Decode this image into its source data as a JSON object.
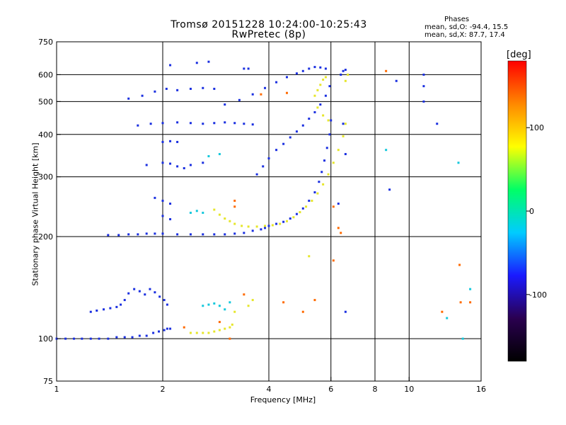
{
  "header": {
    "title": "Tromsø 20151228 10:24:00-10:25:43",
    "subtitle": "RwPretec (8p)"
  },
  "stats": {
    "heading": "Phases",
    "o_line": "mean, sd,O: -94.4, 15.5",
    "x_line": "mean, sd,X:  87.7, 17.4"
  },
  "colorbar": {
    "unit_label": "[deg]",
    "ticks": [
      {
        "value": 100,
        "label": "100"
      },
      {
        "value": 0,
        "label": "0"
      },
      {
        "value": -100,
        "label": "-100"
      }
    ],
    "range": [
      -180,
      180
    ],
    "stops": [
      "#000000",
      "#2a0050",
      "#1a1aff",
      "#00ccff",
      "#00ff66",
      "#ffff00",
      "#ff8800",
      "#ff0000"
    ]
  },
  "chart_data": {
    "type": "scatter",
    "xlabel": "Frequency [MHz]",
    "ylabel": "Stationary phase Virtual Height [km]",
    "xscale": "log",
    "yscale": "log",
    "xlim": [
      1,
      16
    ],
    "ylim": [
      75,
      750
    ],
    "xticks": [
      {
        "value": 1,
        "label": "1"
      },
      {
        "value": 2,
        "label": "2"
      },
      {
        "value": 4,
        "label": "4"
      },
      {
        "value": 6,
        "label": "6"
      },
      {
        "value": 8,
        "label": "8"
      },
      {
        "value": 10,
        "label": "10"
      },
      {
        "value": 16,
        "label": "16"
      }
    ],
    "yticks": [
      {
        "value": 75,
        "label": "75"
      },
      {
        "value": 100,
        "label": "100"
      },
      {
        "value": 200,
        "label": "200"
      },
      {
        "value": 300,
        "label": "300"
      },
      {
        "value": 400,
        "label": "400"
      },
      {
        "value": 500,
        "label": "500"
      },
      {
        "value": 600,
        "label": "600"
      },
      {
        "value": 750,
        "label": "750"
      }
    ],
    "xgrid": [
      2,
      4,
      6,
      8,
      10
    ],
    "ygrid": [
      100,
      200,
      300,
      400,
      500,
      600
    ],
    "grid": true,
    "series": [
      {
        "mode": "O",
        "phase_deg": -94.4,
        "color": "#1a2fe0",
        "points": [
          [
            1.0,
            100
          ],
          [
            1.06,
            100
          ],
          [
            1.12,
            100
          ],
          [
            1.18,
            100
          ],
          [
            1.25,
            100
          ],
          [
            1.32,
            100
          ],
          [
            1.4,
            100
          ],
          [
            1.48,
            101
          ],
          [
            1.56,
            101
          ],
          [
            1.64,
            101
          ],
          [
            1.72,
            102
          ],
          [
            1.8,
            102
          ],
          [
            1.88,
            104
          ],
          [
            1.95,
            105
          ],
          [
            2.02,
            106
          ],
          [
            2.06,
            107
          ],
          [
            2.1,
            107
          ],
          [
            1.25,
            120
          ],
          [
            1.3,
            121
          ],
          [
            1.36,
            122
          ],
          [
            1.42,
            123
          ],
          [
            1.48,
            124
          ],
          [
            1.52,
            126
          ],
          [
            1.56,
            130
          ],
          [
            1.6,
            136
          ],
          [
            1.66,
            140
          ],
          [
            1.72,
            138
          ],
          [
            1.78,
            135
          ],
          [
            1.84,
            140
          ],
          [
            1.9,
            137
          ],
          [
            1.96,
            133
          ],
          [
            2.02,
            130
          ],
          [
            2.06,
            126
          ],
          [
            1.4,
            202
          ],
          [
            1.5,
            202
          ],
          [
            1.6,
            203
          ],
          [
            1.7,
            203
          ],
          [
            1.8,
            204
          ],
          [
            1.9,
            204
          ],
          [
            2.0,
            204
          ],
          [
            2.2,
            203
          ],
          [
            2.4,
            203
          ],
          [
            2.6,
            203
          ],
          [
            2.8,
            203
          ],
          [
            3.0,
            203
          ],
          [
            3.2,
            204
          ],
          [
            3.4,
            205
          ],
          [
            3.6,
            208
          ],
          [
            3.8,
            210
          ],
          [
            3.9,
            212
          ],
          [
            4.0,
            215
          ],
          [
            4.2,
            218
          ],
          [
            4.4,
            221
          ],
          [
            4.6,
            226
          ],
          [
            4.8,
            233
          ],
          [
            5.0,
            242
          ],
          [
            5.2,
            255
          ],
          [
            5.4,
            270
          ],
          [
            5.55,
            290
          ],
          [
            5.65,
            310
          ],
          [
            5.75,
            335
          ],
          [
            5.85,
            365
          ],
          [
            5.95,
            400
          ],
          [
            6.0,
            440
          ],
          [
            3.7,
            305
          ],
          [
            3.85,
            322
          ],
          [
            4.0,
            340
          ],
          [
            4.2,
            360
          ],
          [
            4.4,
            375
          ],
          [
            4.6,
            392
          ],
          [
            4.8,
            408
          ],
          [
            5.0,
            425
          ],
          [
            5.2,
            445
          ],
          [
            5.4,
            465
          ],
          [
            5.6,
            490
          ],
          [
            5.8,
            520
          ],
          [
            5.95,
            555
          ],
          [
            3.0,
            490
          ],
          [
            3.3,
            505
          ],
          [
            3.6,
            525
          ],
          [
            3.9,
            548
          ],
          [
            4.2,
            570
          ],
          [
            4.5,
            590
          ],
          [
            4.8,
            605
          ],
          [
            5.0,
            615
          ],
          [
            5.2,
            625
          ],
          [
            5.4,
            632
          ],
          [
            5.6,
            630
          ],
          [
            5.8,
            625
          ],
          [
            1.7,
            425
          ],
          [
            1.85,
            430
          ],
          [
            2.0,
            432
          ],
          [
            2.2,
            434
          ],
          [
            2.4,
            432
          ],
          [
            2.6,
            430
          ],
          [
            2.8,
            432
          ],
          [
            3.0,
            434
          ],
          [
            3.2,
            432
          ],
          [
            3.4,
            430
          ],
          [
            3.6,
            428
          ],
          [
            1.6,
            510
          ],
          [
            1.75,
            520
          ],
          [
            1.9,
            535
          ],
          [
            2.05,
            545
          ],
          [
            2.2,
            540
          ],
          [
            2.4,
            545
          ],
          [
            2.6,
            548
          ],
          [
            2.8,
            545
          ],
          [
            1.8,
            325
          ],
          [
            2.0,
            330
          ],
          [
            2.1,
            328
          ],
          [
            2.2,
            322
          ],
          [
            2.3,
            318
          ],
          [
            2.4,
            325
          ],
          [
            2.6,
            330
          ],
          [
            2.0,
            380
          ],
          [
            2.1,
            382
          ],
          [
            2.2,
            380
          ],
          [
            1.9,
            260
          ],
          [
            2.0,
            255
          ],
          [
            2.1,
            250
          ],
          [
            2.0,
            230
          ],
          [
            2.1,
            225
          ],
          [
            2.1,
            640
          ],
          [
            2.5,
            650
          ],
          [
            2.7,
            655
          ],
          [
            3.4,
            625
          ],
          [
            3.5,
            625
          ],
          [
            6.3,
            250
          ],
          [
            6.5,
            430
          ],
          [
            6.6,
            350
          ],
          [
            6.4,
            600
          ],
          [
            6.5,
            615
          ],
          [
            6.6,
            620
          ],
          [
            9.2,
            575
          ],
          [
            11.0,
            600
          ],
          [
            11.0,
            555
          ],
          [
            11.0,
            500
          ],
          [
            12.0,
            430
          ],
          [
            8.8,
            275
          ],
          [
            6.6,
            120
          ]
        ]
      },
      {
        "mode": "X",
        "phase_deg": 87.7,
        "color": "#e6e62a",
        "points": [
          [
            2.4,
            104
          ],
          [
            2.5,
            104
          ],
          [
            2.6,
            104
          ],
          [
            2.7,
            104
          ],
          [
            2.8,
            105
          ],
          [
            2.9,
            106
          ],
          [
            3.0,
            107
          ],
          [
            3.1,
            108
          ],
          [
            3.15,
            110
          ],
          [
            2.8,
            240
          ],
          [
            2.9,
            232
          ],
          [
            3.0,
            226
          ],
          [
            3.1,
            222
          ],
          [
            3.2,
            218
          ],
          [
            3.35,
            215
          ],
          [
            3.5,
            214
          ],
          [
            3.7,
            214
          ],
          [
            3.9,
            215
          ],
          [
            4.1,
            216
          ],
          [
            4.3,
            218
          ],
          [
            4.5,
            222
          ],
          [
            4.7,
            228
          ],
          [
            4.9,
            236
          ],
          [
            5.1,
            245
          ],
          [
            5.3,
            255
          ],
          [
            5.5,
            268
          ],
          [
            5.7,
            285
          ],
          [
            5.9,
            305
          ],
          [
            6.1,
            330
          ],
          [
            6.3,
            360
          ],
          [
            6.5,
            395
          ],
          [
            5.4,
            520
          ],
          [
            5.5,
            540
          ],
          [
            5.6,
            560
          ],
          [
            5.7,
            580
          ],
          [
            5.8,
            590
          ],
          [
            5.5,
            480
          ],
          [
            5.7,
            455
          ],
          [
            5.9,
            440
          ],
          [
            3.2,
            120
          ],
          [
            3.5,
            125
          ],
          [
            3.6,
            130
          ],
          [
            6.6,
            575
          ],
          [
            6.7,
            600
          ],
          [
            6.6,
            430
          ],
          [
            5.2,
            175
          ]
        ]
      },
      {
        "mode": "mixed",
        "phase_deg": 0,
        "color": "#14c8dc",
        "points": [
          [
            2.6,
            125
          ],
          [
            2.7,
            126
          ],
          [
            2.8,
            127
          ],
          [
            2.9,
            125
          ],
          [
            3.0,
            122
          ],
          [
            3.1,
            128
          ],
          [
            2.4,
            235
          ],
          [
            2.5,
            238
          ],
          [
            2.6,
            235
          ],
          [
            2.9,
            350
          ],
          [
            2.7,
            345
          ],
          [
            12.8,
            115
          ],
          [
            13.8,
            330
          ],
          [
            14.2,
            100
          ],
          [
            14.9,
            140
          ],
          [
            8.6,
            360
          ]
        ]
      },
      {
        "mode": "mixed",
        "phase_deg": 160,
        "color": "#ff6a00",
        "points": [
          [
            2.3,
            108
          ],
          [
            2.9,
            112
          ],
          [
            3.1,
            100
          ],
          [
            3.4,
            135
          ],
          [
            3.2,
            255
          ],
          [
            3.2,
            245
          ],
          [
            4.4,
            128
          ],
          [
            5.0,
            120
          ],
          [
            5.4,
            130
          ],
          [
            6.1,
            170
          ],
          [
            6.1,
            245
          ],
          [
            6.3,
            212
          ],
          [
            6.4,
            205
          ],
          [
            8.6,
            615
          ],
          [
            12.4,
            120
          ],
          [
            13.9,
            165
          ],
          [
            14.0,
            128
          ],
          [
            14.9,
            128
          ],
          [
            3.8,
            525
          ],
          [
            4.5,
            530
          ]
        ]
      }
    ]
  }
}
